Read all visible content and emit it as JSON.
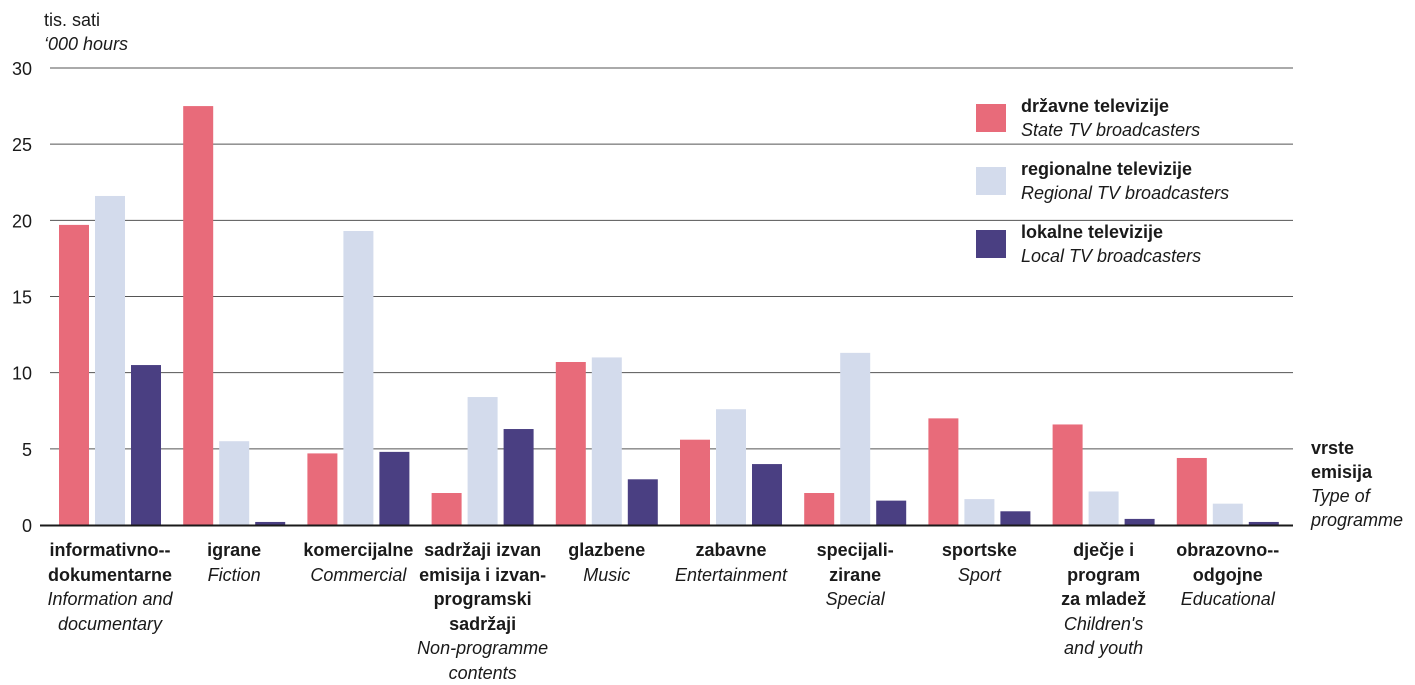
{
  "colors": {
    "state": "#e86b7a",
    "regional": "#d3dbec",
    "local": "#4a3f82",
    "gridline": "#555555",
    "axis": "#1a1a1a"
  },
  "y_title": {
    "hr": "tis. sati",
    "en": "‘000 hours"
  },
  "x_title": {
    "hr": "vrste emisija",
    "en": "Type of programme"
  },
  "chart_data": {
    "type": "bar",
    "ylim": [
      0,
      30
    ],
    "yticks": [
      0,
      5,
      10,
      15,
      20,
      25,
      30
    ],
    "grid": true,
    "legend_position": "top-right",
    "categories": [
      {
        "hr": "informativno--dokumentarne",
        "en": "Information and documentary"
      },
      {
        "hr": "igrane",
        "en": "Fiction"
      },
      {
        "hr": "komercijalne",
        "en": "Commercial"
      },
      {
        "hr": "sadržaji izvan emisija i izvan-programski sadržaji",
        "en": "Non-programme contents"
      },
      {
        "hr": "glazbene",
        "en": "Music"
      },
      {
        "hr": "zabavne",
        "en": "Entertainment"
      },
      {
        "hr": "specijali-zirane",
        "en": "Special"
      },
      {
        "hr": "sportske",
        "en": "Sport"
      },
      {
        "hr": "dječje i program za mladež",
        "en": "Children's and youth"
      },
      {
        "hr": "obrazovno--odgojne",
        "en": "Educational"
      }
    ],
    "series": [
      {
        "name": "državne televizije",
        "name_en": "State TV broadcasters",
        "values": [
          19.7,
          27.5,
          4.7,
          2.1,
          10.7,
          5.6,
          2.1,
          7.0,
          6.6,
          4.4
        ]
      },
      {
        "name": "regionalne televizije",
        "name_en": "Regional TV broadcasters",
        "values": [
          21.6,
          5.5,
          19.3,
          8.4,
          11.0,
          7.6,
          11.3,
          1.7,
          2.2,
          1.4
        ]
      },
      {
        "name": "lokalne televizije",
        "name_en": "Local TV broadcasters",
        "values": [
          10.5,
          0.2,
          4.8,
          6.3,
          3.0,
          4.0,
          1.6,
          0.9,
          0.4,
          0.2
        ]
      }
    ]
  }
}
